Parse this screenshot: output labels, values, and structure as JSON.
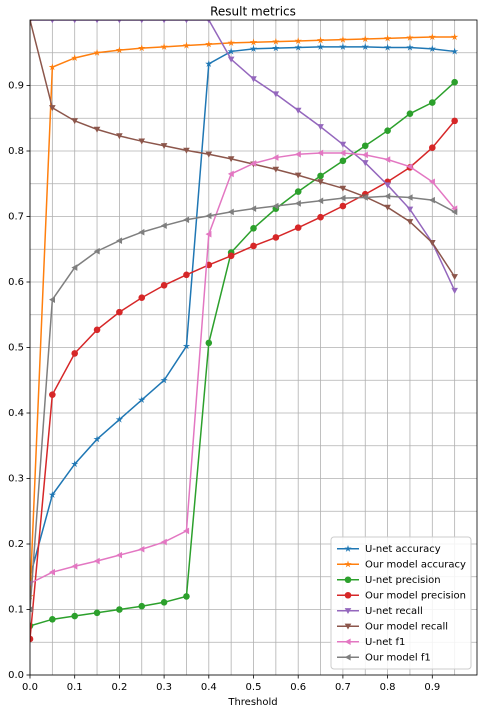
{
  "chart_data": {
    "type": "line",
    "title": "Result metrics",
    "x_label": "Threshold",
    "x": [
      0,
      0.05,
      0.1,
      0.15,
      0.2,
      0.25,
      0.3,
      0.35,
      0.4,
      0.45,
      0.5,
      0.55,
      0.6,
      0.65,
      0.7,
      0.75,
      0.8,
      0.85,
      0.9,
      0.95
    ],
    "xlim": [
      0,
      1.0
    ],
    "ylim": [
      0,
      1.0
    ],
    "xticks": [
      {
        "value": 0,
        "label": "0.0"
      },
      0.1,
      0.2,
      0.3,
      0.4,
      0.5,
      0.6,
      0.7,
      0.8,
      0.9
    ],
    "yticks": [
      {
        "value": 0,
        "label": "0.0"
      },
      0.1,
      0.2,
      0.3,
      0.4,
      0.5,
      0.6,
      0.7,
      0.8,
      0.9
    ],
    "minor_xticks": [
      0.05,
      0.15,
      0.25,
      0.35,
      0.45,
      0.55,
      0.65,
      0.75,
      0.85,
      0.95
    ],
    "minor_yticks": [
      0.05,
      0.15,
      0.25,
      0.35,
      0.45,
      0.55,
      0.65,
      0.75,
      0.85,
      0.95
    ],
    "grid": true,
    "legend": "lower right",
    "series": [
      {
        "name": "U-net accuracy",
        "color": "#1f77b4",
        "marker": "star",
        "values": [
          0.15,
          0.275,
          0.322,
          0.36,
          0.39,
          0.42,
          0.45,
          0.502,
          0.933,
          0.952,
          0.956,
          0.957,
          0.958,
          0.959,
          0.959,
          0.959,
          0.958,
          0.958,
          0.956,
          0.952
        ]
      },
      {
        "name": "Our model accuracy",
        "color": "#ff7f0e",
        "marker": "star",
        "values": [
          0.12,
          0.928,
          0.942,
          0.95,
          0.954,
          0.957,
          0.959,
          0.961,
          0.963,
          0.965,
          0.966,
          0.967,
          0.968,
          0.969,
          0.97,
          0.971,
          0.972,
          0.973,
          0.974,
          0.974
        ]
      },
      {
        "name": "U-net precision",
        "color": "#2ca02c",
        "marker": "circle",
        "values": [
          0.075,
          0.085,
          0.09,
          0.095,
          0.1,
          0.105,
          0.111,
          0.12,
          0.507,
          0.645,
          0.682,
          0.712,
          0.738,
          0.762,
          0.785,
          0.808,
          0.831,
          0.857,
          0.874,
          0.905
        ]
      },
      {
        "name": "Our model precision",
        "color": "#d62728",
        "marker": "circle",
        "values": [
          0.055,
          0.428,
          0.491,
          0.527,
          0.554,
          0.576,
          0.595,
          0.611,
          0.626,
          0.64,
          0.655,
          0.668,
          0.683,
          0.699,
          0.716,
          0.734,
          0.753,
          0.775,
          0.805,
          0.846
        ]
      },
      {
        "name": "U-net recall",
        "color": "#9467bd",
        "marker": "down",
        "values": [
          1.0,
          1.0,
          1.0,
          1.0,
          1.0,
          1.0,
          1.0,
          1.0,
          1.0,
          0.94,
          0.91,
          0.887,
          0.862,
          0.837,
          0.81,
          0.782,
          0.748,
          0.711,
          0.66,
          0.587
        ]
      },
      {
        "name": "Our model recall",
        "color": "#8c564b",
        "marker": "down",
        "values": [
          1.0,
          0.866,
          0.846,
          0.833,
          0.823,
          0.815,
          0.808,
          0.801,
          0.795,
          0.788,
          0.78,
          0.772,
          0.763,
          0.753,
          0.743,
          0.73,
          0.714,
          0.692,
          0.66,
          0.608
        ]
      },
      {
        "name": "U-net f1",
        "color": "#e377c2",
        "marker": "left",
        "values": [
          0.14,
          0.157,
          0.166,
          0.174,
          0.183,
          0.192,
          0.203,
          0.22,
          0.673,
          0.765,
          0.781,
          0.79,
          0.795,
          0.797,
          0.797,
          0.794,
          0.787,
          0.776,
          0.753,
          0.712
        ]
      },
      {
        "name": "Our model f1",
        "color": "#7f7f7f",
        "marker": "left",
        "values": [
          0.1,
          0.573,
          0.622,
          0.647,
          0.663,
          0.676,
          0.686,
          0.695,
          0.701,
          0.707,
          0.712,
          0.716,
          0.72,
          0.724,
          0.728,
          0.729,
          0.731,
          0.729,
          0.725,
          0.707
        ]
      }
    ]
  }
}
